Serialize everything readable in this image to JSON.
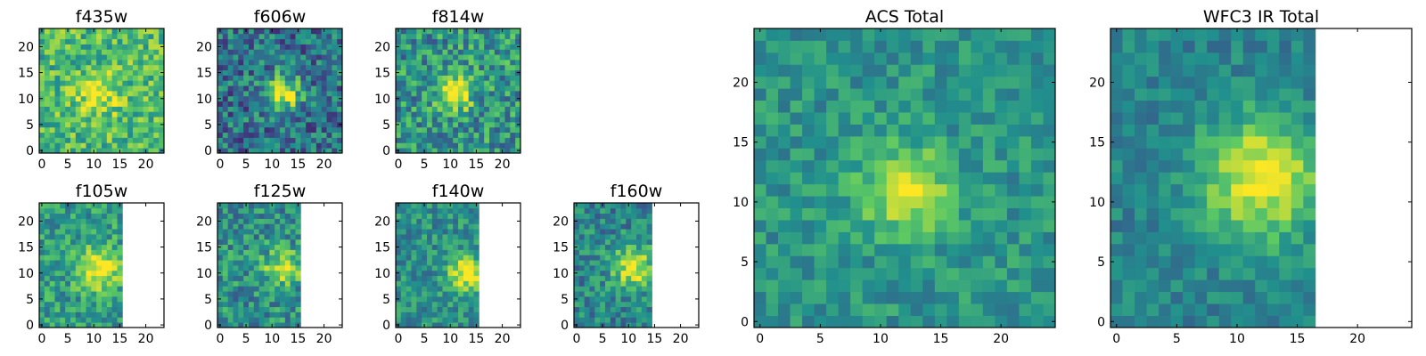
{
  "figure": {
    "colormap": "viridis",
    "colormap_stops": [
      "#440154",
      "#3b528b",
      "#21908d",
      "#5dc963",
      "#fde725"
    ],
    "background": "#ffffff"
  },
  "chart_data": [
    {
      "type": "heatmap",
      "title": "f435w",
      "xlabel": "",
      "ylabel": "",
      "grid_size": 24,
      "data_columns": 24,
      "xlim": [
        0,
        24
      ],
      "ylim": [
        0,
        24
      ],
      "xticks": [
        0,
        5,
        10,
        15,
        20
      ],
      "yticks": [
        0,
        5,
        10,
        15,
        20
      ],
      "mean_level": 0.68,
      "noise": 0.22,
      "peak": {
        "x": 11,
        "y": 11,
        "amp": 0.25,
        "sigma": 3
      },
      "seed": 11
    },
    {
      "type": "heatmap",
      "title": "f606w",
      "xlabel": "",
      "ylabel": "",
      "grid_size": 24,
      "data_columns": 24,
      "xlim": [
        0,
        24
      ],
      "ylim": [
        0,
        24
      ],
      "xticks": [
        0,
        5,
        10,
        15,
        20
      ],
      "yticks": [
        0,
        5,
        10,
        15,
        20
      ],
      "mean_level": 0.38,
      "noise": 0.25,
      "peak": {
        "x": 12,
        "y": 11,
        "amp": 0.6,
        "sigma": 2.5
      },
      "seed": 22
    },
    {
      "type": "heatmap",
      "title": "f814w",
      "xlabel": "",
      "ylabel": "",
      "grid_size": 24,
      "data_columns": 24,
      "xlim": [
        0,
        24
      ],
      "ylim": [
        0,
        24
      ],
      "xticks": [
        0,
        5,
        10,
        15,
        20
      ],
      "yticks": [
        0,
        5,
        10,
        15,
        20
      ],
      "mean_level": 0.52,
      "noise": 0.26,
      "peak": {
        "x": 11,
        "y": 11,
        "amp": 0.45,
        "sigma": 2.5
      },
      "seed": 33
    },
    {
      "type": "heatmap",
      "title": "f105w",
      "xlabel": "",
      "ylabel": "",
      "grid_size": 24,
      "data_columns": 16,
      "xlim": [
        0,
        24
      ],
      "ylim": [
        0,
        24
      ],
      "xticks": [
        0,
        5,
        10,
        15,
        20
      ],
      "yticks": [
        0,
        5,
        10,
        15,
        20
      ],
      "mean_level": 0.55,
      "noise": 0.2,
      "peak": {
        "x": 11,
        "y": 11,
        "amp": 0.45,
        "sigma": 3
      },
      "seed": 44
    },
    {
      "type": "heatmap",
      "title": "f125w",
      "xlabel": "",
      "ylabel": "",
      "grid_size": 24,
      "data_columns": 16,
      "xlim": [
        0,
        24
      ],
      "ylim": [
        0,
        24
      ],
      "xticks": [
        0,
        5,
        10,
        15,
        20
      ],
      "yticks": [
        0,
        5,
        10,
        15,
        20
      ],
      "mean_level": 0.5,
      "noise": 0.22,
      "peak": {
        "x": 12,
        "y": 11,
        "amp": 0.4,
        "sigma": 2.5
      },
      "seed": 55
    },
    {
      "type": "heatmap",
      "title": "f140w",
      "xlabel": "",
      "ylabel": "",
      "grid_size": 24,
      "data_columns": 16,
      "xlim": [
        0,
        24
      ],
      "ylim": [
        0,
        24
      ],
      "xticks": [
        0,
        5,
        10,
        15,
        20
      ],
      "yticks": [
        0,
        5,
        10,
        15,
        20
      ],
      "mean_level": 0.5,
      "noise": 0.18,
      "peak": {
        "x": 13,
        "y": 10,
        "amp": 0.5,
        "sigma": 2.5
      },
      "seed": 66
    },
    {
      "type": "heatmap",
      "title": "f160w",
      "xlabel": "",
      "ylabel": "",
      "grid_size": 24,
      "data_columns": 15,
      "xlim": [
        0,
        24
      ],
      "ylim": [
        0,
        24
      ],
      "xticks": [
        0,
        5,
        10,
        15,
        20
      ],
      "yticks": [
        0,
        5,
        10,
        15,
        20
      ],
      "mean_level": 0.45,
      "noise": 0.2,
      "peak": {
        "x": 11,
        "y": 11,
        "amp": 0.5,
        "sigma": 3
      },
      "seed": 77
    },
    {
      "type": "heatmap",
      "title": "ACS Total",
      "xlabel": "",
      "ylabel": "",
      "grid_size": 25,
      "data_columns": 25,
      "xlim": [
        0,
        25
      ],
      "ylim": [
        0,
        25
      ],
      "xticks": [
        0,
        5,
        10,
        15,
        20
      ],
      "yticks": [
        0,
        5,
        10,
        15,
        20
      ],
      "mean_level": 0.52,
      "noise": 0.14,
      "peak": {
        "x": 12,
        "y": 11,
        "amp": 0.45,
        "sigma": 2.5
      },
      "seed": 88
    },
    {
      "type": "heatmap",
      "title": "WFC3 IR Total",
      "xlabel": "",
      "ylabel": "",
      "grid_size": 25,
      "data_columns": 17,
      "xlim": [
        0,
        25
      ],
      "ylim": [
        0,
        25
      ],
      "xticks": [
        0,
        5,
        10,
        15,
        20
      ],
      "yticks": [
        0,
        5,
        10,
        15,
        20
      ],
      "mean_level": 0.45,
      "noise": 0.12,
      "peak": {
        "x": 12,
        "y": 12,
        "amp": 0.55,
        "sigma": 3.5
      },
      "seed": 99
    }
  ]
}
